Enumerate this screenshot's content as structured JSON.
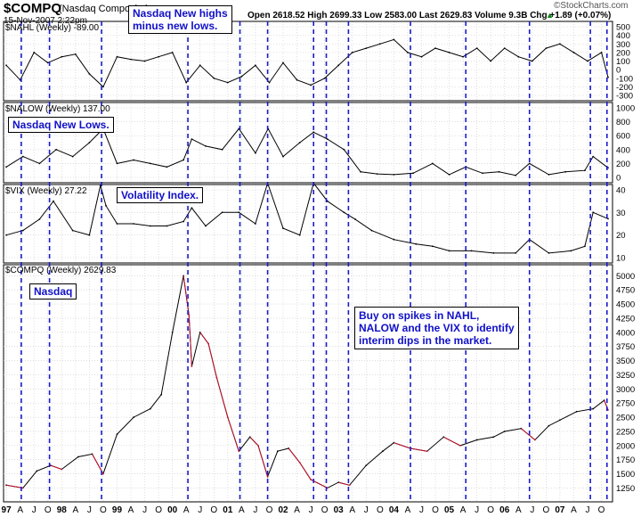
{
  "header": {
    "symbol": "$COMPQ",
    "name": "(Nasdaq Composite)",
    "date_time": "15-Nov-2007 2:22pm",
    "quote_line": "Open 2618.52  High 2699.33  Low 2583.00  Last 2629.83  Volume 9.3B  Chg +1.89 (+0.07%)",
    "quote_up_arrow": "▲",
    "watermark": "©StockCharts.com"
  },
  "callouts": {
    "nahl": "Nasdaq New highs\nminus new lows.",
    "nalow": "Nasdaq New Lows.",
    "vix": "Volatility Index.",
    "nasdaq": "Nasdaq",
    "advice": "Buy on spikes in NAHL,\nNALOW and the VIX to identify\ninterim dips in the market."
  },
  "panel_labels": {
    "nahl": "$NAHL (Weekly) -89.00",
    "nalow": "$NALOW (Weekly) 137.00",
    "vix": "$VIX (Weekly) 27.22",
    "compq": "$COMPQ (Weekly) 2629.83"
  },
  "colors": {
    "grid": "#c8c8c8",
    "marker": "#1a1acc",
    "line": "#000000",
    "price_down": "#c0102a",
    "callout_text": "#1010c8"
  },
  "chart_data": [
    {
      "type": "line",
      "name": "$NAHL (Weekly)",
      "ylim": [
        -300,
        500
      ],
      "yticks": [
        500,
        400,
        300,
        200,
        100,
        0,
        -100,
        -200,
        -300
      ],
      "x": [
        1997.0,
        1997.25,
        1997.5,
        1997.75,
        1998.0,
        1998.25,
        1998.5,
        1998.75,
        1999.0,
        1999.25,
        1999.5,
        1999.75,
        2000.0,
        2000.25,
        2000.5,
        2000.75,
        2001.0,
        2001.25,
        2001.5,
        2001.75,
        2002.0,
        2002.25,
        2002.5,
        2002.75,
        2003.0,
        2003.25,
        2003.5,
        2003.75,
        2004.0,
        2004.25,
        2004.5,
        2004.75,
        2005.0,
        2005.25,
        2005.5,
        2005.75,
        2006.0,
        2006.25,
        2006.5,
        2006.75,
        2007.0,
        2007.25,
        2007.5,
        2007.75,
        2007.87
      ],
      "values": [
        50,
        -120,
        200,
        80,
        150,
        180,
        -50,
        -200,
        150,
        120,
        100,
        150,
        200,
        -150,
        50,
        -100,
        -150,
        -80,
        50,
        -150,
        80,
        -120,
        -180,
        -100,
        50,
        200,
        250,
        300,
        350,
        200,
        150,
        250,
        200,
        150,
        250,
        100,
        250,
        150,
        100,
        250,
        300,
        200,
        100,
        200,
        -89
      ]
    },
    {
      "type": "line",
      "name": "$NALOW (Weekly)",
      "ylim": [
        0,
        1000
      ],
      "yticks": [
        1000,
        800,
        600,
        400,
        200,
        0
      ],
      "x": [
        1997.0,
        1997.3,
        1997.6,
        1997.9,
        1998.2,
        1998.5,
        1998.75,
        1999.0,
        1999.3,
        1999.6,
        1999.9,
        2000.2,
        2000.35,
        2000.6,
        2000.9,
        2001.2,
        2001.5,
        2001.73,
        2002.0,
        2002.3,
        2002.55,
        2002.8,
        2003.1,
        2003.4,
        2003.7,
        2004.0,
        2004.35,
        2004.7,
        2005.0,
        2005.3,
        2005.6,
        2005.9,
        2006.2,
        2006.45,
        2006.8,
        2007.1,
        2007.45,
        2007.6,
        2007.87
      ],
      "values": [
        150,
        300,
        200,
        400,
        300,
        500,
        700,
        200,
        250,
        200,
        150,
        250,
        550,
        450,
        400,
        700,
        350,
        700,
        300,
        500,
        650,
        550,
        400,
        80,
        50,
        40,
        60,
        200,
        40,
        150,
        60,
        80,
        30,
        200,
        40,
        80,
        100,
        300,
        137
      ]
    },
    {
      "type": "line",
      "name": "$VIX (Weekly)",
      "ylim": [
        10,
        40
      ],
      "yticks": [
        40,
        30,
        20,
        10
      ],
      "x": [
        1997.0,
        1997.3,
        1997.6,
        1997.85,
        1998.2,
        1998.5,
        1998.7,
        1998.8,
        1999.0,
        1999.3,
        1999.6,
        1999.9,
        2000.2,
        2000.35,
        2000.6,
        2000.9,
        2001.2,
        2001.5,
        2001.72,
        2002.0,
        2002.3,
        2002.55,
        2002.8,
        2003.1,
        2003.3,
        2003.6,
        2004.0,
        2004.4,
        2004.7,
        2005.0,
        2005.4,
        2005.8,
        2006.2,
        2006.45,
        2006.8,
        2007.2,
        2007.45,
        2007.6,
        2007.87
      ],
      "values": [
        20,
        22,
        27,
        35,
        22,
        20,
        42,
        33,
        25,
        25,
        24,
        24,
        26,
        32,
        24,
        30,
        30,
        25,
        43,
        23,
        20,
        43,
        35,
        30,
        27,
        22,
        18,
        16,
        15,
        13,
        13,
        12,
        12,
        18,
        12,
        13,
        15,
        30,
        27.22
      ]
    },
    {
      "type": "line",
      "name": "$COMPQ (Weekly)",
      "ylim": [
        1100,
        5100
      ],
      "yticks": [
        5000,
        4750,
        4500,
        4250,
        4000,
        3750,
        3500,
        3250,
        3000,
        2750,
        2500,
        2250,
        2000,
        1750,
        1500,
        1250
      ],
      "x": [
        1997.0,
        1997.3,
        1997.55,
        1997.8,
        1998.0,
        1998.3,
        1998.55,
        1998.75,
        1999.0,
        1999.3,
        1999.6,
        1999.8,
        2000.0,
        2000.2,
        2000.3,
        2000.35,
        2000.5,
        2000.65,
        2000.8,
        2001.0,
        2001.2,
        2001.4,
        2001.55,
        2001.72,
        2001.9,
        2002.1,
        2002.3,
        2002.5,
        2002.8,
        2003.0,
        2003.2,
        2003.5,
        2003.8,
        2004.0,
        2004.3,
        2004.6,
        2004.9,
        2005.2,
        2005.5,
        2005.8,
        2006.0,
        2006.3,
        2006.55,
        2006.8,
        2007.0,
        2007.3,
        2007.6,
        2007.8,
        2007.87
      ],
      "values": [
        1300,
        1250,
        1550,
        1650,
        1580,
        1800,
        1850,
        1500,
        2200,
        2500,
        2650,
        2900,
        4000,
        5000,
        4300,
        3400,
        4000,
        3800,
        3200,
        2500,
        1900,
        2150,
        2000,
        1450,
        1900,
        1950,
        1700,
        1400,
        1250,
        1350,
        1300,
        1650,
        1900,
        2050,
        1950,
        1900,
        2150,
        2000,
        2100,
        2150,
        2250,
        2300,
        2100,
        2350,
        2450,
        2600,
        2650,
        2800,
        2629.83
      ]
    }
  ],
  "x_axis": {
    "labels": [
      {
        "t": 1997.0,
        "text": "97",
        "bold": true
      },
      {
        "t": 1997.25,
        "text": "A",
        "bold": false
      },
      {
        "t": 1997.5,
        "text": "J",
        "bold": false
      },
      {
        "t": 1997.75,
        "text": "O",
        "bold": false
      },
      {
        "t": 1998.0,
        "text": "98",
        "bold": true
      },
      {
        "t": 1998.25,
        "text": "A",
        "bold": false
      },
      {
        "t": 1998.5,
        "text": "J",
        "bold": false
      },
      {
        "t": 1998.75,
        "text": "O",
        "bold": false
      },
      {
        "t": 1999.0,
        "text": "99",
        "bold": true
      },
      {
        "t": 1999.25,
        "text": "A",
        "bold": false
      },
      {
        "t": 1999.5,
        "text": "J",
        "bold": false
      },
      {
        "t": 1999.75,
        "text": "O",
        "bold": false
      },
      {
        "t": 2000.0,
        "text": "00",
        "bold": true
      },
      {
        "t": 2000.25,
        "text": "A",
        "bold": false
      },
      {
        "t": 2000.5,
        "text": "J",
        "bold": false
      },
      {
        "t": 2000.75,
        "text": "O",
        "bold": false
      },
      {
        "t": 2001.0,
        "text": "01",
        "bold": true
      },
      {
        "t": 2001.25,
        "text": "A",
        "bold": false
      },
      {
        "t": 2001.5,
        "text": "J",
        "bold": false
      },
      {
        "t": 2001.75,
        "text": "O",
        "bold": false
      },
      {
        "t": 2002.0,
        "text": "02",
        "bold": true
      },
      {
        "t": 2002.25,
        "text": "A",
        "bold": false
      },
      {
        "t": 2002.5,
        "text": "J",
        "bold": false
      },
      {
        "t": 2002.75,
        "text": "O",
        "bold": false
      },
      {
        "t": 2003.0,
        "text": "03",
        "bold": true
      },
      {
        "t": 2003.25,
        "text": "A",
        "bold": false
      },
      {
        "t": 2003.5,
        "text": "J",
        "bold": false
      },
      {
        "t": 2003.75,
        "text": "O",
        "bold": false
      },
      {
        "t": 2004.0,
        "text": "04",
        "bold": true
      },
      {
        "t": 2004.25,
        "text": "A",
        "bold": false
      },
      {
        "t": 2004.5,
        "text": "J",
        "bold": false
      },
      {
        "t": 2004.75,
        "text": "O",
        "bold": false
      },
      {
        "t": 2005.0,
        "text": "05",
        "bold": true
      },
      {
        "t": 2005.25,
        "text": "A",
        "bold": false
      },
      {
        "t": 2005.5,
        "text": "J",
        "bold": false
      },
      {
        "t": 2005.75,
        "text": "O",
        "bold": false
      },
      {
        "t": 2006.0,
        "text": "06",
        "bold": true
      },
      {
        "t": 2006.25,
        "text": "A",
        "bold": false
      },
      {
        "t": 2006.5,
        "text": "J",
        "bold": false
      },
      {
        "t": 2006.75,
        "text": "O",
        "bold": false
      },
      {
        "t": 2007.0,
        "text": "07",
        "bold": true
      },
      {
        "t": 2007.25,
        "text": "A",
        "bold": false
      },
      {
        "t": 2007.5,
        "text": "J",
        "bold": false
      },
      {
        "t": 2007.75,
        "text": "O",
        "bold": false
      }
    ],
    "domain": [
      1996.95,
      2007.95
    ]
  },
  "markers": [
    1997.27,
    1997.78,
    1998.72,
    2000.28,
    2001.22,
    2001.72,
    2002.55,
    2002.78,
    2003.18,
    2004.3,
    2005.3,
    2006.45,
    2007.55,
    2007.85
  ]
}
